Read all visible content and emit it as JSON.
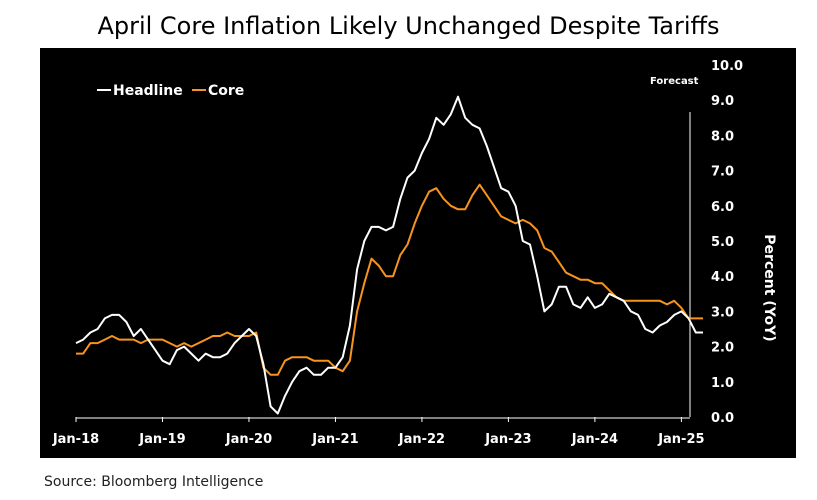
{
  "chart_data": {
    "type": "line",
    "title": "April Core Inflation Likely Unchanged Despite Tariffs",
    "ylabel": "Percent (YoY)",
    "xlabel": "",
    "ylim": [
      0,
      10
    ],
    "yticks": [
      "0.0",
      "1.0",
      "2.0",
      "3.0",
      "4.0",
      "5.0",
      "6.0",
      "7.0",
      "8.0",
      "9.0",
      "10.0"
    ],
    "xtick_labels": [
      "Jan-18",
      "Jan-19",
      "Jan-20",
      "Jan-21",
      "Jan-22",
      "Jan-23",
      "Jan-24",
      "Jan-25"
    ],
    "annotation": "Forecast",
    "legend": [
      {
        "name": "Headline",
        "color": "#ffffff"
      },
      {
        "name": "Core",
        "color": "#f7941d"
      }
    ],
    "series": [
      {
        "name": "Headline",
        "color": "#ffffff",
        "values": [
          2.1,
          2.2,
          2.4,
          2.5,
          2.8,
          2.9,
          2.9,
          2.7,
          2.3,
          2.5,
          2.2,
          1.9,
          1.6,
          1.5,
          1.9,
          2.0,
          1.8,
          1.6,
          1.8,
          1.7,
          1.7,
          1.8,
          2.1,
          2.3,
          2.5,
          2.3,
          1.5,
          0.3,
          0.1,
          0.6,
          1.0,
          1.3,
          1.4,
          1.2,
          1.2,
          1.4,
          1.4,
          1.7,
          2.6,
          4.2,
          5.0,
          5.4,
          5.4,
          5.3,
          5.4,
          6.2,
          6.8,
          7.0,
          7.5,
          7.9,
          8.5,
          8.3,
          8.6,
          9.1,
          8.5,
          8.3,
          8.2,
          7.7,
          7.1,
          6.5,
          6.4,
          6.0,
          5.0,
          4.9,
          4.0,
          3.0,
          3.2,
          3.7,
          3.7,
          3.2,
          3.1,
          3.4,
          3.1,
          3.2,
          3.5,
          3.4,
          3.3,
          3.0,
          2.9,
          2.5,
          2.4,
          2.6,
          2.7,
          2.9,
          3.0,
          2.8,
          2.4,
          2.4
        ]
      },
      {
        "name": "Core",
        "color": "#f7941d",
        "values": [
          1.8,
          1.8,
          2.1,
          2.1,
          2.2,
          2.3,
          2.2,
          2.2,
          2.2,
          2.1,
          2.2,
          2.2,
          2.2,
          2.1,
          2.0,
          2.1,
          2.0,
          2.1,
          2.2,
          2.3,
          2.3,
          2.4,
          2.3,
          2.3,
          2.3,
          2.4,
          1.4,
          1.2,
          1.2,
          1.6,
          1.7,
          1.7,
          1.7,
          1.6,
          1.6,
          1.6,
          1.4,
          1.3,
          1.6,
          3.0,
          3.8,
          4.5,
          4.3,
          4.0,
          4.0,
          4.6,
          4.9,
          5.5,
          6.0,
          6.4,
          6.5,
          6.2,
          6.0,
          5.9,
          5.9,
          6.3,
          6.6,
          6.3,
          6.0,
          5.7,
          5.6,
          5.5,
          5.6,
          5.5,
          5.3,
          4.8,
          4.7,
          4.4,
          4.1,
          4.0,
          3.9,
          3.9,
          3.8,
          3.8,
          3.6,
          3.4,
          3.3,
          3.3,
          3.3,
          3.3,
          3.3,
          3.3,
          3.2,
          3.3,
          3.1,
          2.8,
          2.8,
          2.8
        ]
      }
    ]
  },
  "footer": {
    "source": "Source: Bloomberg Intelligence"
  }
}
